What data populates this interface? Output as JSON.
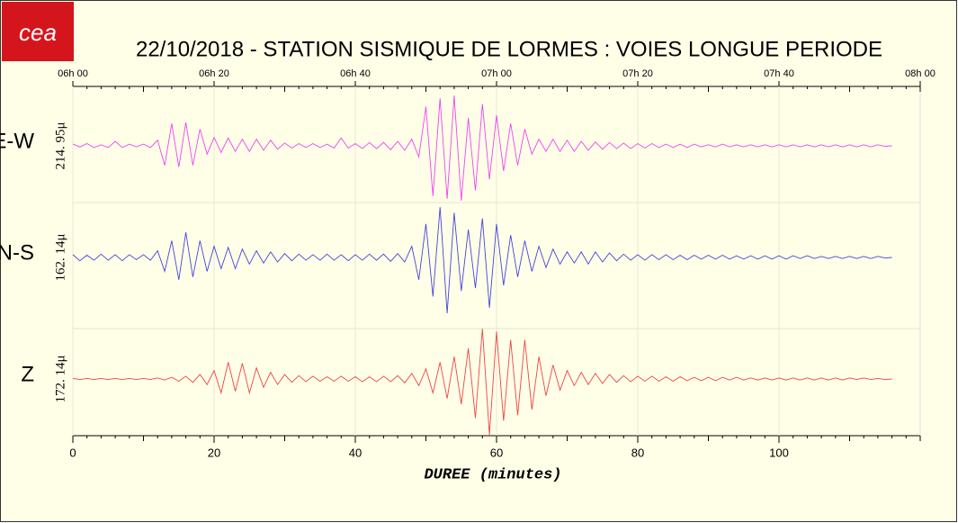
{
  "chart_data": {
    "type": "line",
    "logo": "cea",
    "title": "22/10/2018  -  STATION SISMIQUE DE LORMES : VOIES LONGUE PERIODE",
    "x_label": "DUREE (minutes)",
    "xlim": [
      0,
      120
    ],
    "xticks": [
      0,
      20,
      40,
      60,
      80,
      100
    ],
    "top_ticks": [
      {
        "value": 0,
        "label": "06h 00"
      },
      {
        "value": 20,
        "label": "06h 20"
      },
      {
        "value": 40,
        "label": "06h 40"
      },
      {
        "value": 60,
        "label": "07h 00"
      },
      {
        "value": 80,
        "label": "07h 20"
      },
      {
        "value": 100,
        "label": "07h 40"
      },
      {
        "value": 120,
        "label": "08h 00"
      }
    ],
    "ylim": [
      -1,
      1
    ],
    "grid": true,
    "x": [
      0,
      1,
      2,
      3,
      4,
      5,
      6,
      7,
      8,
      9,
      10,
      11,
      12,
      13,
      14,
      15,
      16,
      17,
      18,
      19,
      20,
      21,
      22,
      23,
      24,
      25,
      26,
      27,
      28,
      29,
      30,
      31,
      32,
      33,
      34,
      35,
      36,
      37,
      38,
      39,
      40,
      41,
      42,
      43,
      44,
      45,
      46,
      47,
      48,
      49,
      50,
      51,
      52,
      53,
      54,
      55,
      56,
      57,
      58,
      59,
      60,
      61,
      62,
      63,
      64,
      65,
      66,
      67,
      68,
      69,
      70,
      71,
      72,
      73,
      74,
      75,
      76,
      77,
      78,
      79,
      80,
      81,
      82,
      83,
      84,
      85,
      86,
      87,
      88,
      89,
      90,
      91,
      92,
      93,
      94,
      95,
      96,
      97,
      98,
      99,
      100,
      101,
      102,
      103,
      104,
      105,
      106,
      107,
      108,
      109,
      110,
      111,
      112,
      113,
      114,
      115,
      116
    ],
    "series": [
      {
        "name": "E-W",
        "color": "#ee44ee",
        "scale_label": "214. 95μ",
        "values": [
          0.03,
          -0.02,
          0.04,
          -0.03,
          0.02,
          -0.03,
          0.08,
          -0.03,
          0.03,
          -0.02,
          0.03,
          -0.03,
          0.1,
          -0.35,
          0.4,
          -0.38,
          0.42,
          -0.35,
          0.3,
          -0.15,
          0.15,
          -0.12,
          0.14,
          -0.1,
          0.12,
          -0.1,
          0.12,
          -0.08,
          0.1,
          -0.06,
          0.05,
          -0.04,
          0.04,
          -0.03,
          0.04,
          -0.03,
          0.03,
          -0.04,
          0.14,
          -0.04,
          0.04,
          -0.05,
          0.06,
          -0.05,
          0.06,
          -0.07,
          0.08,
          -0.08,
          0.12,
          -0.2,
          0.7,
          -0.9,
          0.85,
          -0.95,
          0.9,
          -0.98,
          0.5,
          -0.8,
          0.75,
          -0.6,
          0.55,
          -0.45,
          0.4,
          -0.35,
          0.3,
          -0.15,
          0.12,
          -0.1,
          0.12,
          -0.1,
          0.1,
          -0.1,
          0.08,
          -0.08,
          0.07,
          -0.06,
          0.06,
          -0.05,
          0.05,
          -0.05,
          0.04,
          -0.04,
          0.04,
          -0.03,
          0.03,
          -0.03,
          0.03,
          -0.03,
          0.03,
          -0.02,
          0.02,
          -0.02,
          0.03,
          -0.02,
          0.02,
          -0.02,
          0.02,
          -0.02,
          0.02,
          -0.02,
          0.02,
          -0.02,
          0.02,
          -0.02,
          0.02,
          -0.02,
          0.02,
          -0.02,
          0.02,
          -0.02,
          0.02,
          -0.02,
          0.02,
          -0.02,
          0.02,
          -0.01,
          0.0
        ]
      },
      {
        "name": "N-S",
        "color": "#4444dd",
        "scale_label": "162. 14μ",
        "values": [
          0.05,
          -0.06,
          0.04,
          -0.05,
          0.06,
          -0.05,
          0.05,
          -0.06,
          0.05,
          -0.04,
          0.05,
          -0.05,
          0.12,
          -0.25,
          0.3,
          -0.4,
          0.45,
          -0.35,
          0.3,
          -0.25,
          0.2,
          -0.2,
          0.18,
          -0.2,
          0.15,
          -0.12,
          0.12,
          -0.1,
          0.1,
          -0.08,
          0.07,
          -0.06,
          0.06,
          -0.05,
          0.05,
          -0.05,
          0.06,
          -0.05,
          0.05,
          -0.06,
          0.05,
          -0.05,
          0.06,
          -0.05,
          0.06,
          -0.07,
          0.07,
          -0.08,
          0.2,
          -0.4,
          0.6,
          -0.7,
          0.9,
          -1.0,
          0.8,
          -0.6,
          0.5,
          -0.55,
          0.7,
          -0.9,
          0.6,
          -0.5,
          0.4,
          -0.35,
          0.3,
          -0.25,
          0.2,
          -0.18,
          0.15,
          -0.12,
          0.1,
          -0.1,
          0.1,
          -0.12,
          0.1,
          -0.08,
          0.08,
          -0.06,
          0.06,
          -0.05,
          0.05,
          -0.05,
          0.05,
          -0.04,
          0.05,
          -0.04,
          0.04,
          -0.04,
          0.04,
          -0.03,
          0.04,
          -0.03,
          0.04,
          -0.03,
          0.03,
          -0.03,
          0.03,
          -0.03,
          0.03,
          -0.03,
          0.03,
          -0.03,
          0.03,
          -0.02,
          0.03,
          -0.02,
          0.02,
          -0.02,
          0.02,
          -0.02,
          0.02,
          -0.02,
          0.02,
          -0.02,
          0.02,
          -0.01,
          0.0
        ]
      },
      {
        "name": "Z",
        "color": "#ee4444",
        "scale_label": "172. 14μ",
        "values": [
          0.01,
          -0.01,
          0.01,
          -0.01,
          0.01,
          -0.01,
          0.01,
          -0.01,
          0.01,
          -0.01,
          0.01,
          -0.01,
          0.02,
          -0.02,
          0.03,
          -0.04,
          0.05,
          -0.06,
          0.08,
          -0.1,
          0.15,
          -0.25,
          0.3,
          -0.22,
          0.28,
          -0.25,
          0.2,
          -0.15,
          0.12,
          -0.1,
          0.08,
          -0.06,
          0.06,
          -0.05,
          0.05,
          -0.04,
          0.04,
          -0.04,
          0.05,
          -0.04,
          0.04,
          -0.05,
          0.04,
          -0.05,
          0.05,
          -0.05,
          0.06,
          -0.07,
          0.1,
          -0.12,
          0.18,
          -0.25,
          0.3,
          -0.35,
          0.4,
          -0.45,
          0.55,
          -0.7,
          0.9,
          -1.0,
          0.85,
          -0.75,
          0.7,
          -0.65,
          0.7,
          -0.55,
          0.4,
          -0.3,
          0.25,
          -0.2,
          0.15,
          -0.12,
          0.12,
          -0.1,
          0.1,
          -0.08,
          0.08,
          -0.06,
          0.06,
          -0.05,
          0.05,
          -0.04,
          0.05,
          -0.04,
          0.04,
          -0.04,
          0.04,
          -0.03,
          0.03,
          -0.03,
          0.03,
          -0.03,
          0.03,
          -0.02,
          0.03,
          -0.02,
          0.02,
          -0.02,
          0.02,
          -0.02,
          0.02,
          -0.02,
          0.02,
          -0.02,
          0.02,
          -0.02,
          0.02,
          -0.02,
          0.02,
          -0.02,
          0.02,
          -0.01,
          0.02,
          -0.01,
          0.01,
          -0.01,
          0.0
        ]
      }
    ]
  }
}
